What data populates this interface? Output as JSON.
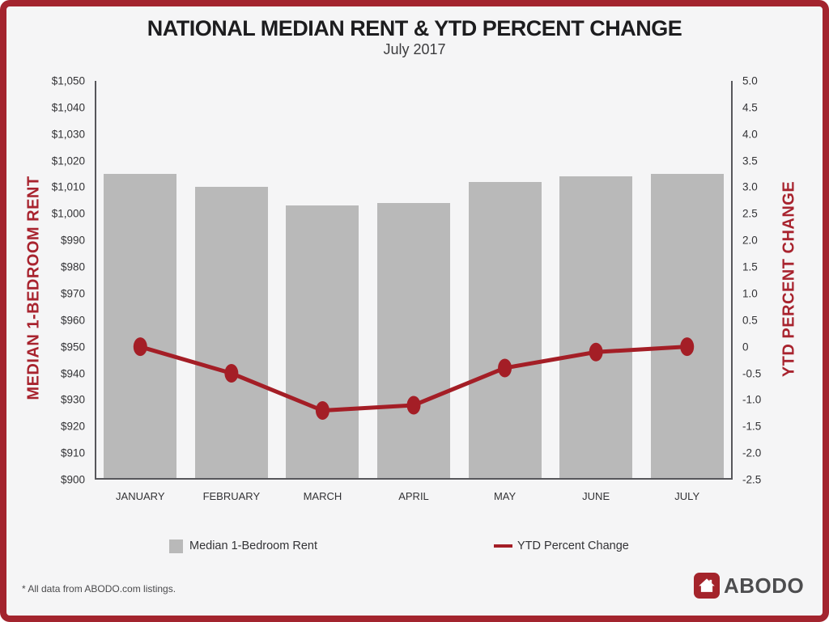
{
  "header": {
    "title": "NATIONAL MEDIAN RENT & YTD PERCENT CHANGE",
    "subtitle": "July 2017"
  },
  "chart_data": {
    "type": "bar+line",
    "title": "NATIONAL MEDIAN RENT & YTD PERCENT CHANGE",
    "subtitle": "July 2017",
    "categories": [
      "JANUARY",
      "FEBRUARY",
      "MARCH",
      "APRIL",
      "MAY",
      "JUNE",
      "JULY"
    ],
    "series": [
      {
        "name": "Median 1-Bedroom Rent",
        "type": "bar",
        "axis": "left",
        "color": "#b9b9b9",
        "values": [
          1015,
          1010,
          1003,
          1004,
          1012,
          1014,
          1015
        ]
      },
      {
        "name": "YTD Percent Change",
        "type": "line",
        "axis": "right",
        "color": "#a41e26",
        "values": [
          0.0,
          -0.5,
          -1.2,
          -1.1,
          -0.4,
          -0.1,
          0.0
        ]
      }
    ],
    "left_axis": {
      "label": "MEDIAN 1-BEDROOM RENT",
      "min": 900,
      "max": 1050,
      "step": 10,
      "tick_prefix": "$"
    },
    "right_axis": {
      "label": "YTD PERCENT CHANGE",
      "min": -2.5,
      "max": 5.0,
      "step": 0.5
    },
    "grid": false,
    "legend_position": "bottom"
  },
  "legend": {
    "items": [
      {
        "label": "Median 1-Bedroom Rent",
        "swatch": "square",
        "color": "#b9b9b9"
      },
      {
        "label": "YTD Percent Change",
        "swatch": "line",
        "color": "#a41e26"
      }
    ]
  },
  "footer": {
    "note": "* All data from ABODO.com listings.",
    "logo_text": "ABODO",
    "logo_icon": "house-icon"
  },
  "colors": {
    "accent_red": "#a3242e",
    "bar_gray": "#b9b9b9",
    "background": "#f5f5f6",
    "axis_line": "#57575b",
    "text_dark": "#1d1d1f"
  }
}
